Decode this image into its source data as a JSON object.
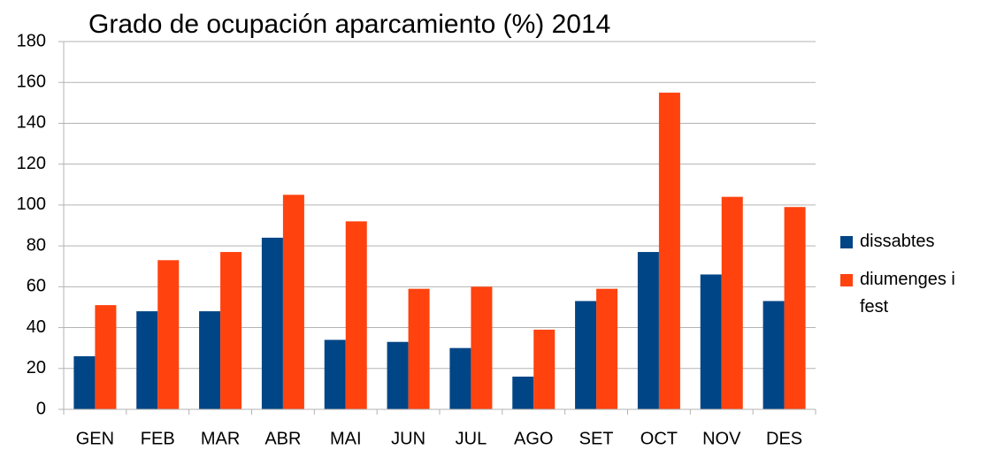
{
  "chart_data": {
    "type": "bar",
    "title": "Grado de ocupación aparcamiento (%) 2014",
    "categories": [
      "GEN",
      "FEB",
      "MAR",
      "ABR",
      "MAI",
      "JUN",
      "JUL",
      "AGO",
      "SET",
      "OCT",
      "NOV",
      "DES"
    ],
    "series": [
      {
        "name": "dissabtes",
        "color": "#004586",
        "values": [
          26,
          48,
          48,
          84,
          34,
          33,
          30,
          16,
          53,
          77,
          66,
          53
        ]
      },
      {
        "name": "diumenges i fest",
        "color": "#ff420e",
        "values": [
          51,
          73,
          77,
          105,
          92,
          59,
          60,
          39,
          59,
          155,
          104,
          99
        ]
      }
    ],
    "ylim": [
      0,
      180
    ],
    "yticks": [
      0,
      20,
      40,
      60,
      80,
      100,
      120,
      140,
      160,
      180
    ],
    "grid": true,
    "legend": "right"
  }
}
